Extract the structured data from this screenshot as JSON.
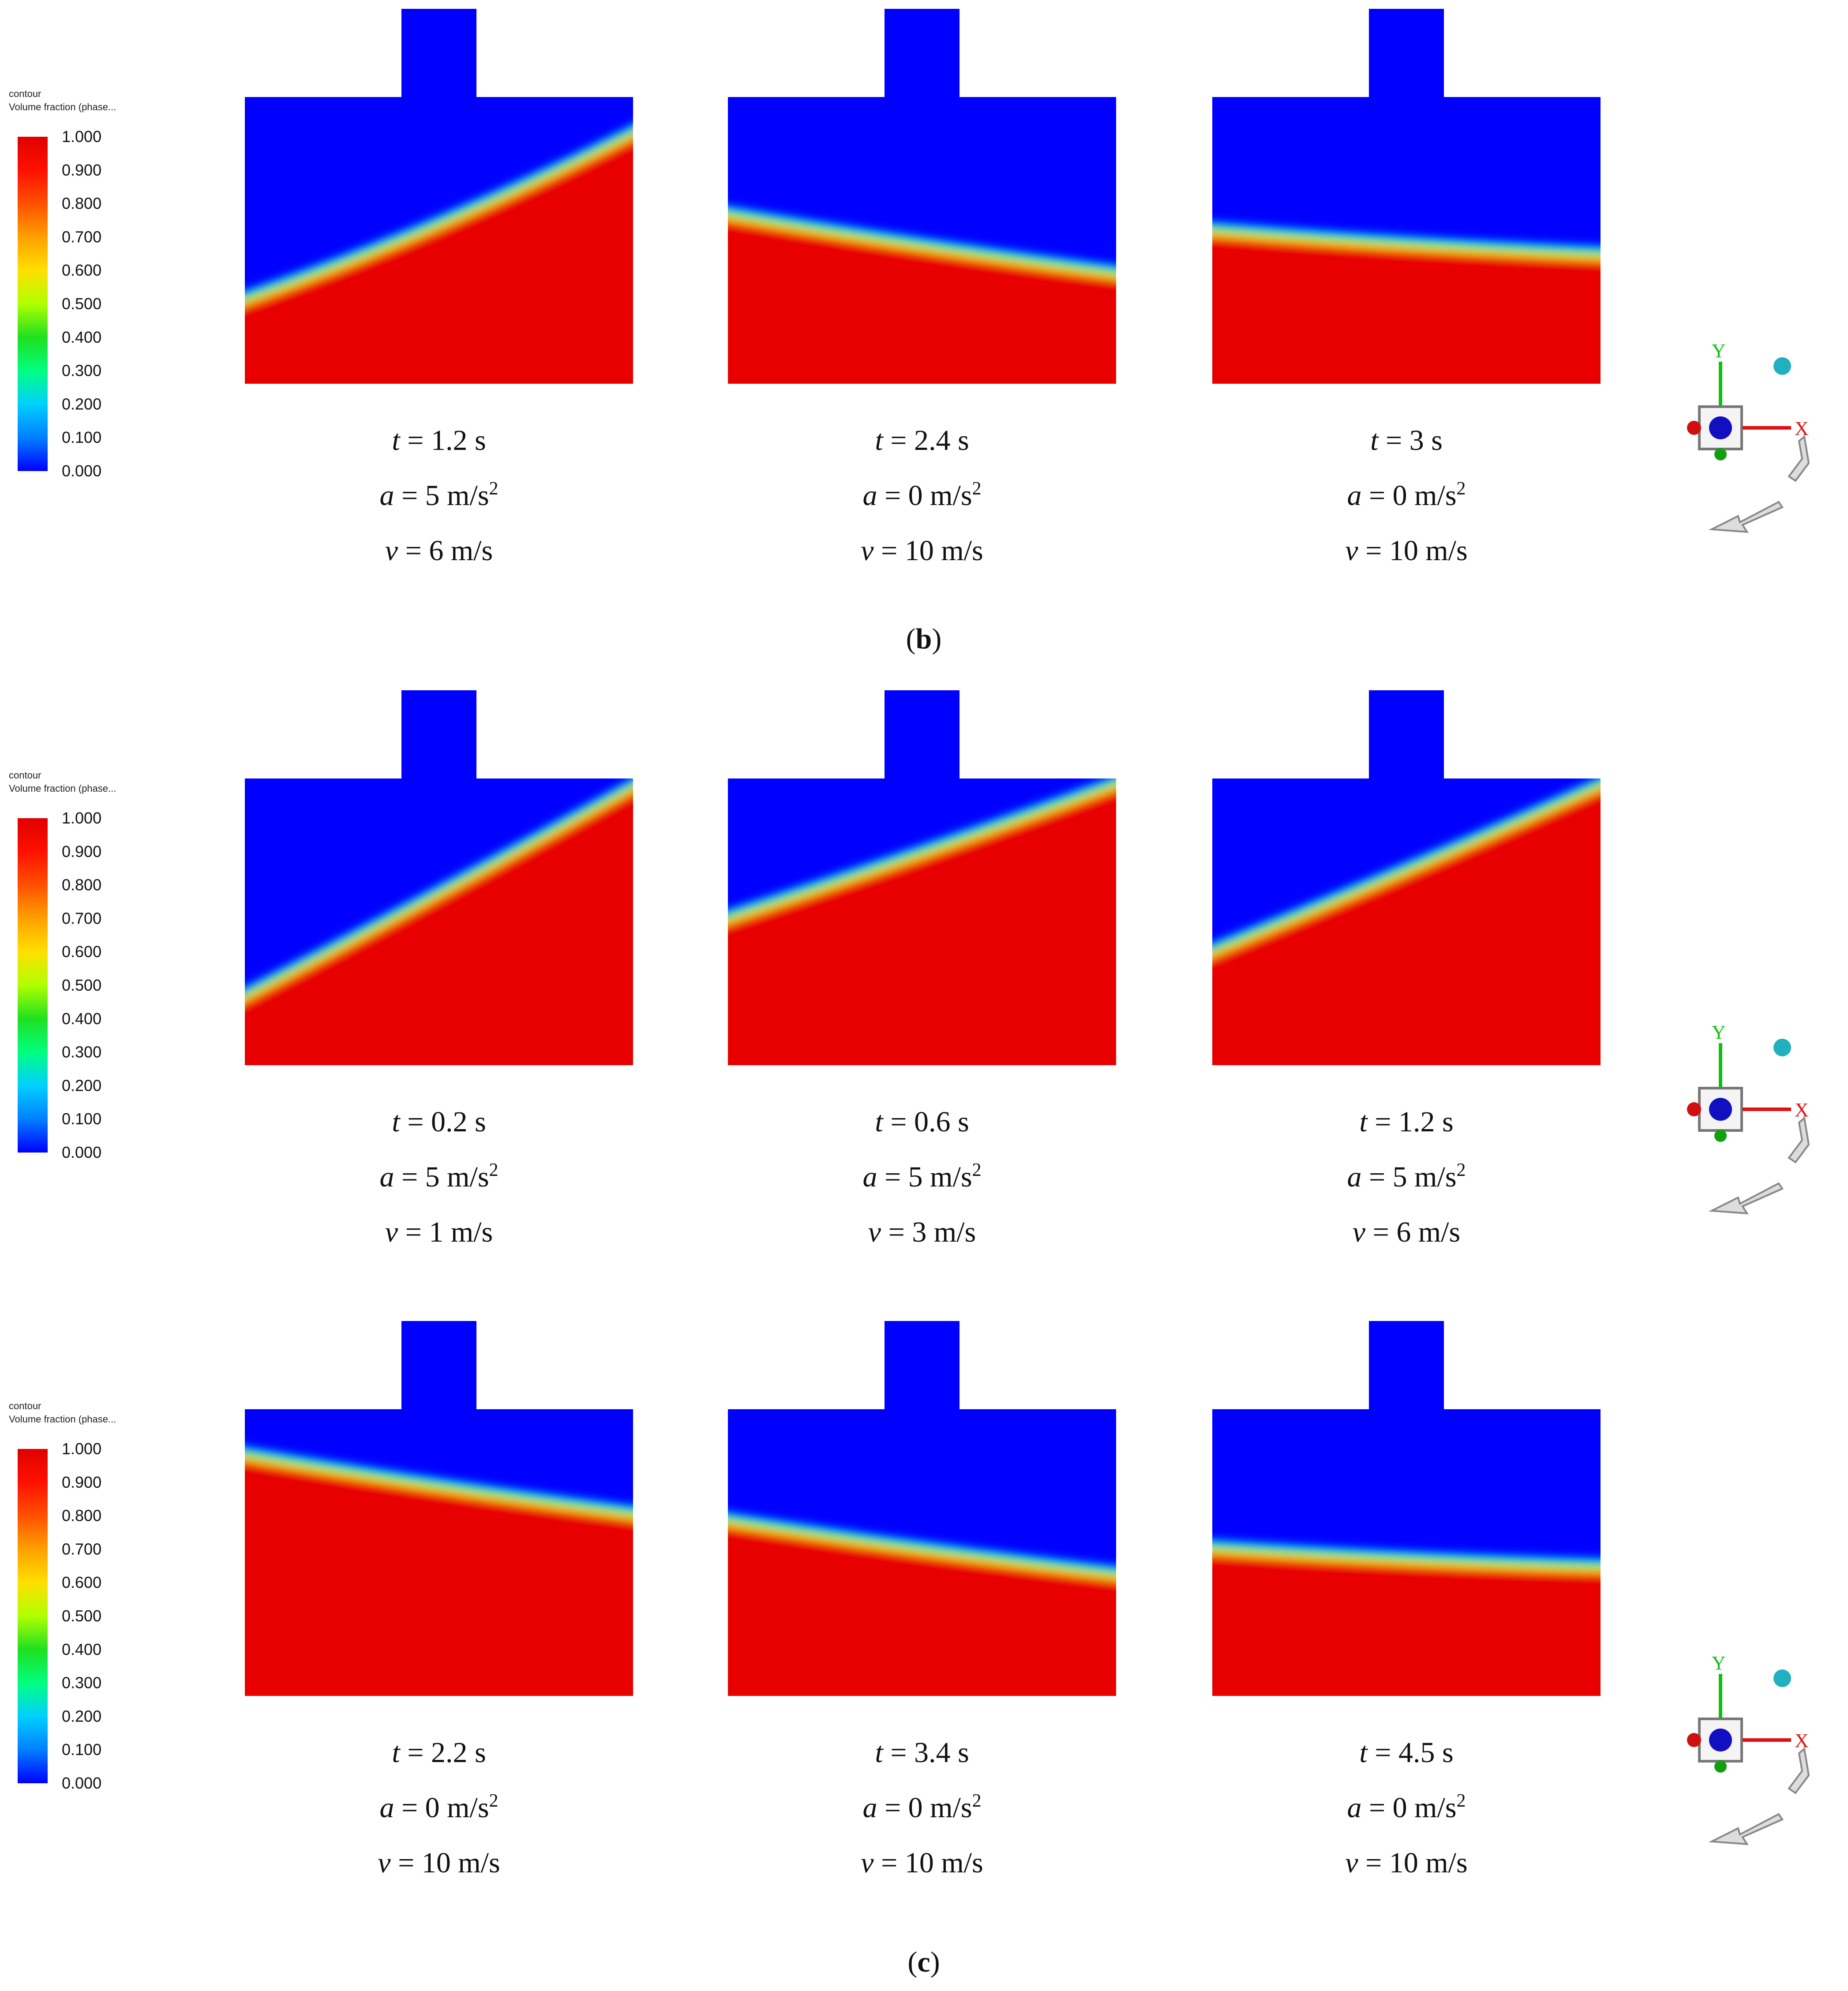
{
  "legend": {
    "title_line1": "contour",
    "title_line2": "Volume fraction (phase...",
    "ticks": [
      "1.000",
      "0.900",
      "0.800",
      "0.700",
      "0.600",
      "0.500",
      "0.400",
      "0.300",
      "0.200",
      "0.100",
      "0.000"
    ],
    "range": [
      0,
      1
    ],
    "colormap": [
      "#0000ff",
      "#0080ff",
      "#00d0ff",
      "#00ff80",
      "#20e020",
      "#b0ff00",
      "#ffe000",
      "#ffa000",
      "#ff5000",
      "#ff1000",
      "#e00000"
    ]
  },
  "rows": [
    {
      "caption": "(b)",
      "caption_letter": "b",
      "panels": [
        {
          "t": "1.2 s",
          "a": "5 m/s",
          "v": "6 m/s",
          "interface_left": 0.72,
          "interface_right": 0.1
        },
        {
          "t": "2.4 s",
          "a": "0 m/s",
          "v": "10 m/s",
          "interface_left": 0.4,
          "interface_right": 0.62
        },
        {
          "t": "3 s",
          "a": "0 m/s",
          "v": "10 m/s",
          "interface_left": 0.46,
          "interface_right": 0.55
        }
      ]
    },
    {
      "caption": "",
      "caption_letter": "",
      "panels": [
        {
          "t": "0.2 s",
          "a": "5 m/s",
          "v": "1 m/s",
          "interface_left": 0.78,
          "interface_right": 0.0
        },
        {
          "t": "0.6 s",
          "a": "5 m/s",
          "v": "3 m/s",
          "interface_left": 0.5,
          "interface_right": 0.0
        },
        {
          "t": "1.2 s",
          "a": "5 m/s",
          "v": "6 m/s",
          "interface_left": 0.62,
          "interface_right": 0.0
        }
      ]
    },
    {
      "caption": "(c)",
      "caption_letter": "c",
      "panels": [
        {
          "t": "2.2 s",
          "a": "0 m/s",
          "v": "10 m/s",
          "interface_left": 0.15,
          "interface_right": 0.37
        },
        {
          "t": "3.4 s",
          "a": "0 m/s",
          "v": "10 m/s",
          "interface_left": 0.38,
          "interface_right": 0.58
        },
        {
          "t": "4.5 s",
          "a": "0 m/s",
          "v": "10 m/s",
          "interface_left": 0.48,
          "interface_right": 0.55
        }
      ]
    }
  ],
  "labels": {
    "t_var": "t",
    "a_var": "a",
    "v_var": "v",
    "eq": " = ",
    "sup": "2"
  },
  "triad": {
    "y_label": "Y",
    "x_label": "X"
  },
  "colors": {
    "water": "#e80000",
    "air": "#0000ff",
    "interface": "#20e060"
  }
}
